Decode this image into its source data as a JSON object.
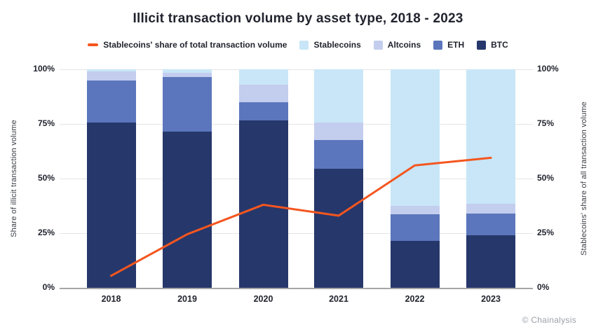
{
  "chart_data": {
    "type": "bar",
    "subtype": "stacked-bar-with-line",
    "title": "Illicit transaction volume by asset type, 2018 - 2023",
    "categories": [
      "2018",
      "2019",
      "2020",
      "2021",
      "2022",
      "2023"
    ],
    "series": [
      {
        "name": "BTC",
        "color": "#26376b",
        "values": [
          75.5,
          71.5,
          76.5,
          54.5,
          21.5,
          24.0
        ]
      },
      {
        "name": "ETH",
        "color": "#5b76bc",
        "values": [
          19.5,
          25.0,
          8.5,
          13.0,
          12.0,
          10.0
        ]
      },
      {
        "name": "Altcoins",
        "color": "#c3cdee",
        "values": [
          4.0,
          2.0,
          8.0,
          8.0,
          4.0,
          4.5
        ]
      },
      {
        "name": "Stablecoins",
        "color": "#c8e6f7",
        "values": [
          1.0,
          1.5,
          7.0,
          24.5,
          62.5,
          61.5
        ]
      }
    ],
    "line_series": {
      "name": "Stablecoins' share of total transaction volume",
      "color": "#f4561f",
      "values": [
        5.5,
        24.5,
        38.0,
        33.0,
        56.0,
        59.5
      ]
    },
    "y_left": {
      "label": "Share of illicit transaction volume",
      "ticks": [
        "0%",
        "25%",
        "50%",
        "75%",
        "100%"
      ],
      "tick_values": [
        0,
        25,
        50,
        75,
        100
      ],
      "min": 0,
      "max": 100
    },
    "y_right": {
      "label": "Stablecoins' share of all transaction volume",
      "ticks": [
        "0%",
        "25%",
        "50%",
        "75%",
        "100%"
      ],
      "tick_values": [
        0,
        25,
        50,
        75,
        100
      ],
      "min": 0,
      "max": 100
    },
    "legend": [
      {
        "label": "Stablecoins' share of total transaction volume",
        "swatch": "line",
        "color": "#f4561f"
      },
      {
        "label": "Stablecoins",
        "swatch": "square",
        "color": "#c8e6f7"
      },
      {
        "label": "Altcoins",
        "swatch": "square",
        "color": "#c3cdee"
      },
      {
        "label": "ETH",
        "swatch": "square",
        "color": "#5b76bc"
      },
      {
        "label": "BTC",
        "swatch": "square",
        "color": "#26376b"
      }
    ],
    "grid": true,
    "legend_position": "top",
    "colors": {
      "gridline": "#e4e4e4",
      "axis_line": "#a6a6a6",
      "text": "#21242e",
      "footer_text": "#9aa0a6"
    }
  },
  "footer": {
    "text": "© Chainalysis"
  }
}
